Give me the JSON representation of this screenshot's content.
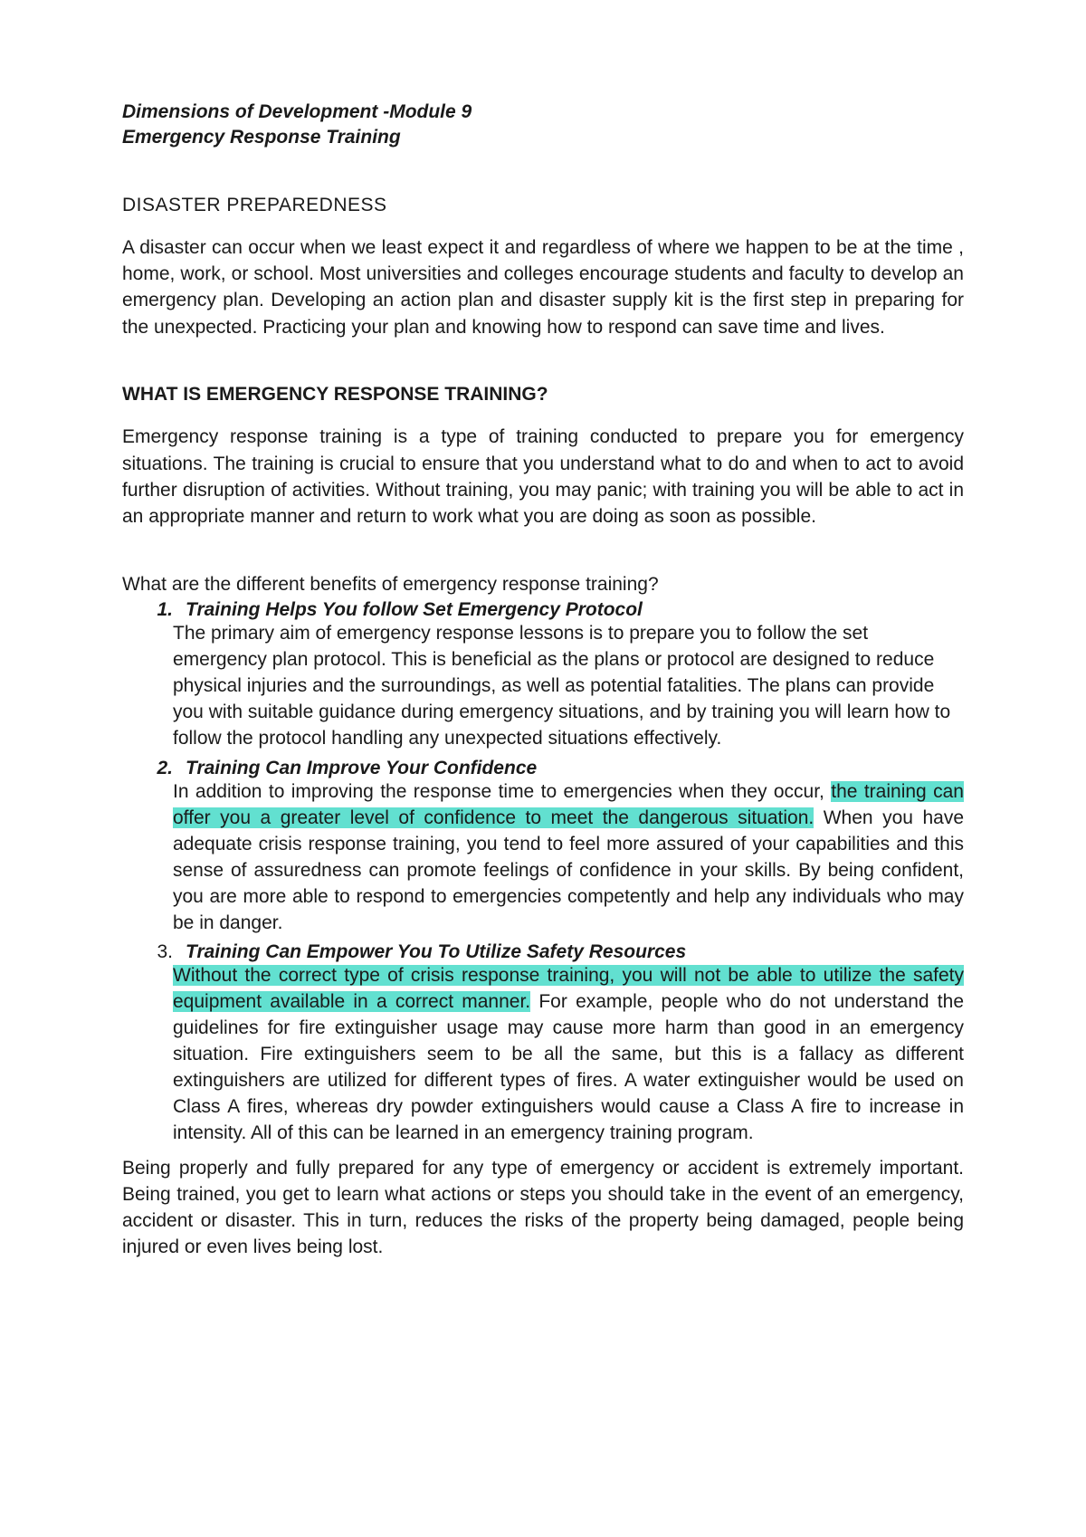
{
  "colors": {
    "background": "#ffffff",
    "text": "#1a1a1a",
    "highlight": "#62e0d0"
  },
  "typography": {
    "font_family": "Arial, Helvetica, sans-serif",
    "body_fontsize_pt": 16,
    "line_height": 1.4
  },
  "header": {
    "line1": "Dimensions of Development -Module 9",
    "line2": "Emergency Response Training"
  },
  "section1": {
    "title": "DISASTER PREPAREDNESS",
    "body": "A disaster can occur when we least expect it and regardless of where we happen to be at the time , home, work, or school. Most universities and colleges encourage students and faculty to develop an emergency plan. Developing an action plan and disaster supply kit is the first step in preparing for the unexpected. Practicing your plan and knowing how to respond can save time and lives."
  },
  "section2": {
    "title": "WHAT IS EMERGENCY RESPONSE TRAINING?",
    "body": "Emergency response training is a type of training conducted to prepare you for emergency situations. The training is crucial to ensure that you understand what to do and when to act to avoid further disruption of activities. Without training, you may panic; with training you will be able to act in an appropriate manner and return to work what you are doing as soon as possible."
  },
  "benefits": {
    "intro": "What are the different benefits of emergency response training?",
    "items": [
      {
        "num": "1.",
        "title": "Training Helps You follow Set Emergency Protocol",
        "body_plain": "The primary aim of emergency response lessons is to prepare you to follow the set emergency plan protocol. This is beneficial as the plans or protocol are designed to reduce physical injuries and the surroundings, as well as potential fatalities. The plans can provide you with suitable guidance during emergency situations, and by training you will learn how to follow the protocol handling any unexpected situations effectively."
      },
      {
        "num": "2.",
        "title": "Training Can Improve Your Confidence",
        "body_pre": "In addition to improving the response time to emergencies when they occur, ",
        "body_hl": "the training can offer you a greater level of confidence to meet the dangerous situation.",
        "body_post": " When you have adequate crisis response training, you tend to feel more assured of your capabilities and this sense of assuredness can promote feelings of confidence in your skills. By being confident, you are more able to respond to emergencies competently and help any individuals who may be in danger."
      },
      {
        "num": "3.",
        "title": "Training Can Empower You To Utilize Safety Resources",
        "body_hl": "Without the correct type of crisis response training, you will not be able to utilize the safety equipment available in a correct manner.",
        "body_post": " For example, people who do not understand the guidelines for fire extinguisher usage may cause more harm than good in an emergency situation. Fire extinguishers seem to be all the same, but this is a fallacy as different extinguishers are utilized for different types of fires. A water extinguisher would be used on Class A fires, whereas dry powder extinguishers would cause a Class A fire to increase in intensity. All of this can be learned in an emergency training program."
      }
    ]
  },
  "closing": "Being properly and fully prepared for any type of emergency or accident is extremely important. Being trained, you get to learn what actions or steps you should take in the event of an emergency, accident or disaster. This in turn, reduces the risks of the property being damaged, people being injured or even lives being lost."
}
